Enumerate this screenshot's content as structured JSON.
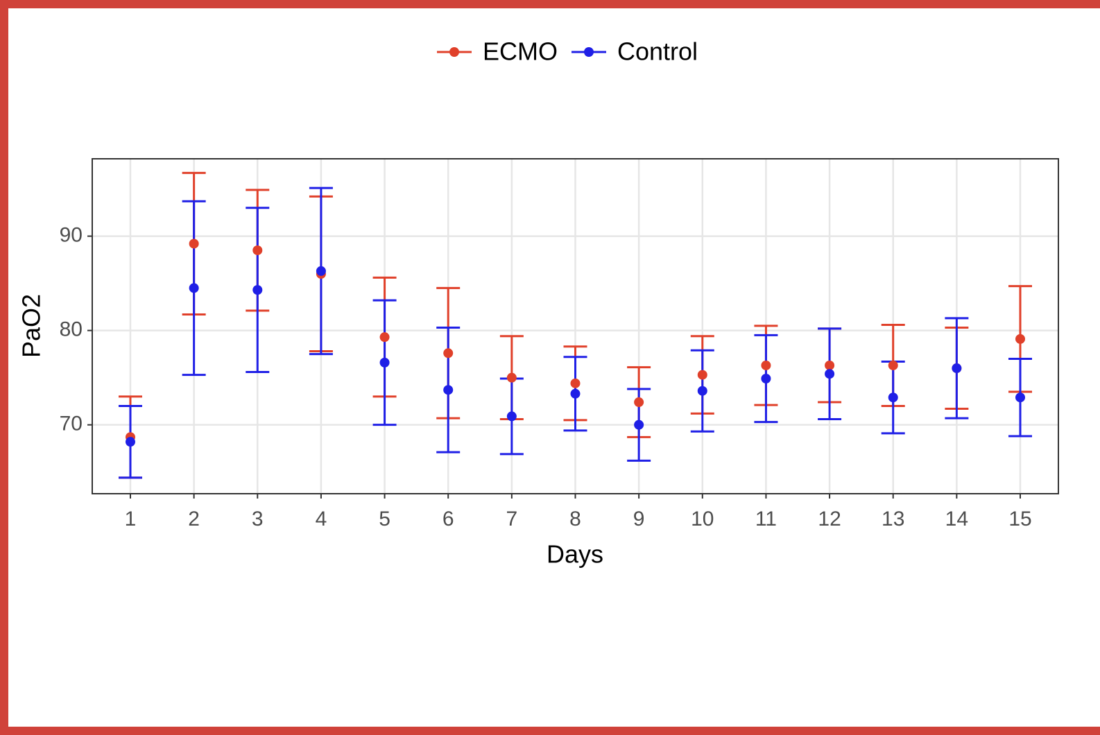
{
  "chart_data": {
    "type": "errorbar",
    "x_label": "Days",
    "y_label": "PaO2",
    "x": [
      1,
      2,
      3,
      4,
      5,
      6,
      7,
      8,
      9,
      10,
      11,
      12,
      13,
      14,
      15
    ],
    "xlim": [
      0.4,
      15.6
    ],
    "xticks": [
      1,
      2,
      3,
      4,
      5,
      6,
      7,
      8,
      9,
      10,
      11,
      12,
      13,
      14,
      15
    ],
    "ylim": [
      62.7,
      98.2
    ],
    "yticks": [
      70,
      80,
      90
    ],
    "grid": true,
    "legend": "top",
    "series": [
      {
        "name": "ECMO",
        "color": "#e0402a",
        "values": [
          68.7,
          89.2,
          88.5,
          86.0,
          79.3,
          77.6,
          75.0,
          74.4,
          72.4,
          75.3,
          76.3,
          76.3,
          76.3,
          76.0,
          79.1
        ],
        "errors": [
          4.3,
          7.5,
          6.4,
          8.2,
          6.3,
          6.9,
          4.4,
          3.9,
          3.7,
          4.1,
          4.2,
          3.9,
          4.3,
          4.3,
          5.6
        ]
      },
      {
        "name": "Control",
        "color": "#1f1fe6",
        "values": [
          68.2,
          84.5,
          84.3,
          86.3,
          76.6,
          73.7,
          70.9,
          73.3,
          70.0,
          73.6,
          74.9,
          75.4,
          72.9,
          76.0,
          72.9
        ],
        "errors": [
          3.8,
          9.2,
          8.7,
          8.8,
          6.6,
          6.6,
          4.0,
          3.9,
          3.8,
          4.3,
          4.6,
          4.8,
          3.8,
          5.3,
          4.1
        ]
      }
    ]
  }
}
